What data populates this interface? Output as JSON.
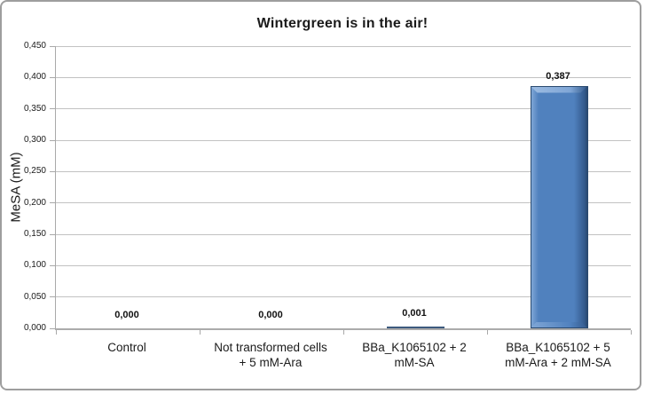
{
  "window": {
    "background_color": "#FFFFFF",
    "border_color": "#9E9E9E"
  },
  "chart_data": {
    "type": "bar",
    "title": "Wintergreen is in the air!",
    "xlabel": "",
    "ylabel": "MeSA (mM)",
    "categories": [
      "Control",
      "Not transformed cells + 5 mM-Ara",
      "BBa_K1065102 + 2 mM-SA",
      "BBa_K1065102 + 5 mM-Ara + 2 mM-SA"
    ],
    "category_lines": [
      [
        "Control"
      ],
      [
        "Not transformed cells",
        "+ 5 mM-Ara"
      ],
      [
        "BBa_K1065102 + 2",
        "mM-SA"
      ],
      [
        "BBa_K1065102 + 5",
        "mM-Ara + 2 mM-SA"
      ]
    ],
    "values": [
      0.0,
      0.0,
      0.001,
      0.387
    ],
    "data_labels": [
      "0,000",
      "0,000",
      "0,001",
      "0,387"
    ],
    "ylim": [
      0,
      0.45
    ],
    "yticks": [
      {
        "value": 0.0,
        "label": "0,000"
      },
      {
        "value": 0.05,
        "label": "0,050"
      },
      {
        "value": 0.1,
        "label": "0,100"
      },
      {
        "value": 0.15,
        "label": "0,150"
      },
      {
        "value": 0.2,
        "label": "0,200"
      },
      {
        "value": 0.25,
        "label": "0,250"
      },
      {
        "value": 0.3,
        "label": "0,300"
      },
      {
        "value": 0.35,
        "label": "0,350"
      },
      {
        "value": 0.4,
        "label": "0,400"
      },
      {
        "value": 0.45,
        "label": "0,450"
      }
    ],
    "grid": true,
    "legend": "none",
    "colors": {
      "bar_fill": "#5081BE",
      "bar_fill_light": "#7FA6D6",
      "bar_fill_lighter": "#9DBCE2",
      "bar_fill_dark": "#33598C",
      "bar_edge": "#29496F",
      "tiny_bar": "#3D5A7E",
      "gridline": "#C2C2C2",
      "axis": "#A9A9A9",
      "text": "#1A1A1A"
    }
  }
}
